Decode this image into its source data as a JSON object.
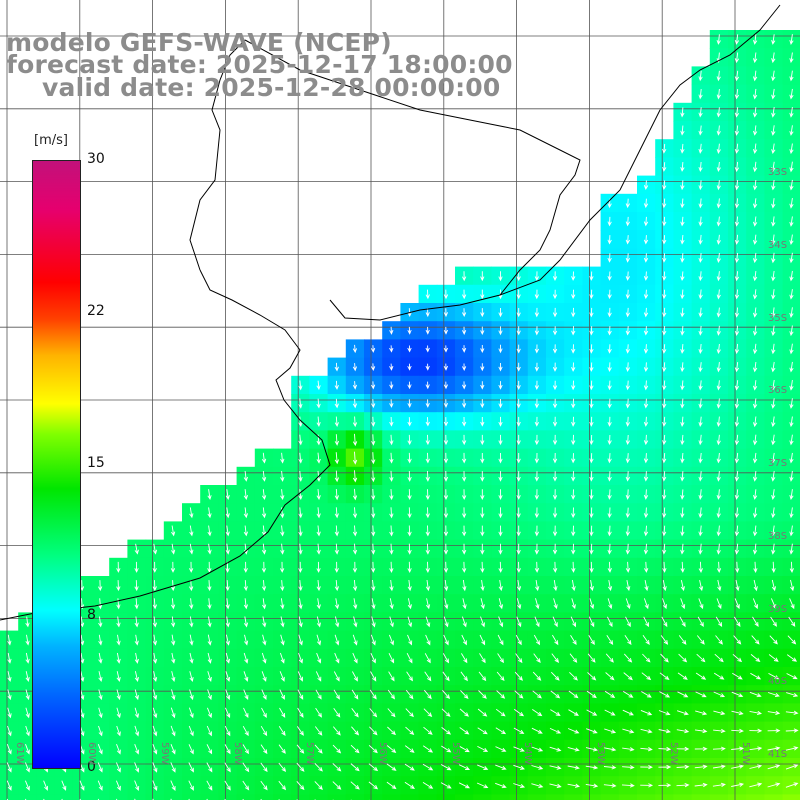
{
  "title": {
    "line1": "modelo GEFS-WAVE (NCEP)",
    "line2": "forecast date: 2025-12-17 18:00:00",
    "line3": "valid date: 2025-12-28 00:00:00"
  },
  "colorbar": {
    "unit": "[m/s]",
    "min": 0,
    "max": 30,
    "ticks": [
      "30",
      "22",
      "15",
      "8",
      "0"
    ]
  },
  "grid_labels": {
    "lat": [
      "33S",
      "34S",
      "35S",
      "36S",
      "37S",
      "38S",
      "39S",
      "40S",
      "41S"
    ],
    "lon": [
      "61W",
      "60W",
      "59W",
      "58W",
      "57W",
      "56W",
      "55W",
      "54W",
      "53W",
      "52W",
      "51W"
    ]
  },
  "colors": {
    "land": "#ffffff",
    "coastline": "#000000",
    "grid": "#555555",
    "vectors": "#ffffff",
    "title_text": "#8c8c8c"
  },
  "field": {
    "variable": "wind speed and direction",
    "calm_bay_speed_ms": 2,
    "coastal_shelf_speed_ms": 7,
    "offshore_speed_ms": 11,
    "southern_max_speed_ms": 15
  }
}
